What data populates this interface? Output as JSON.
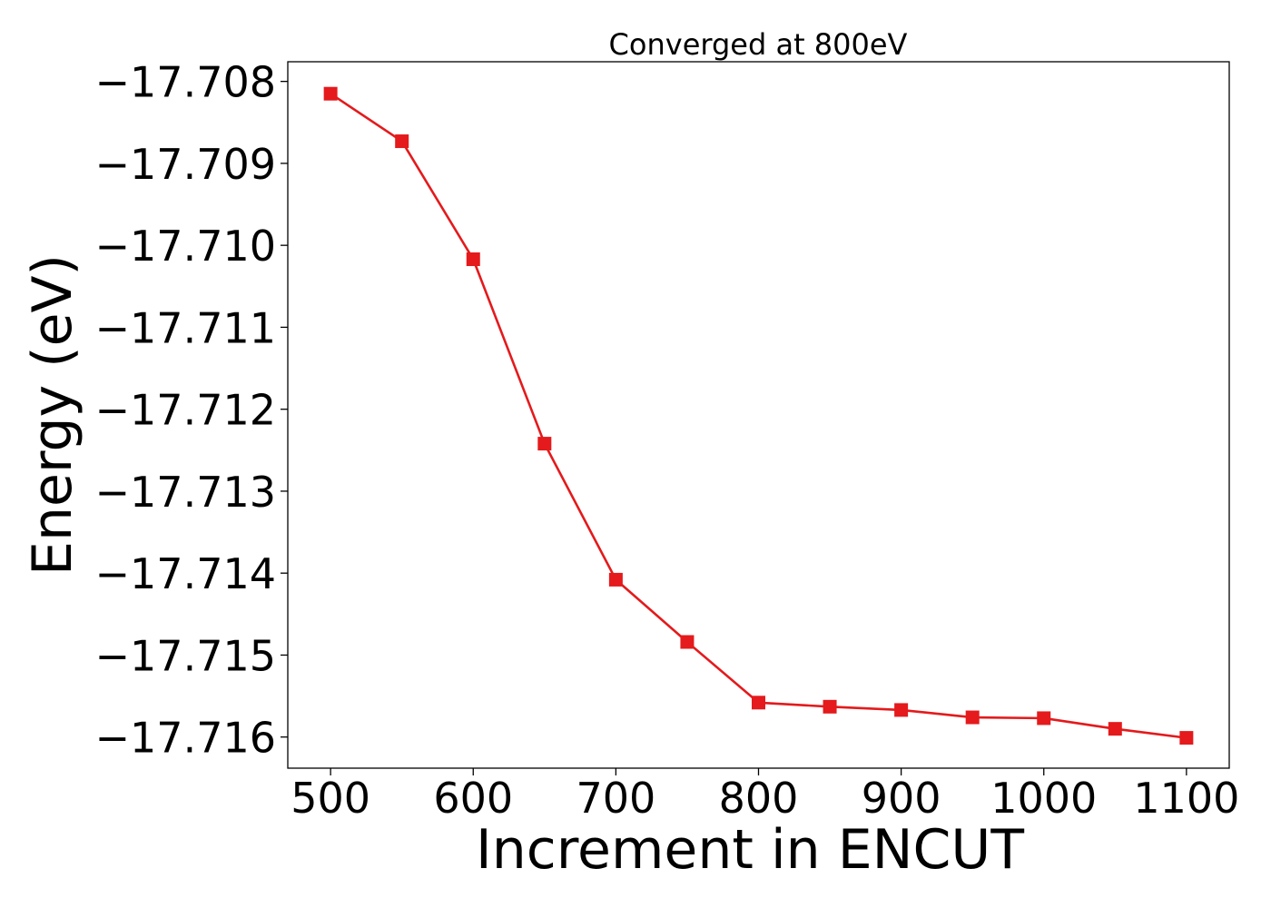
{
  "chart_data": {
    "type": "line",
    "title": "Converged at 800eV",
    "xlabel": "Increment in ENCUT",
    "ylabel": "Energy (eV)",
    "x": [
      500,
      550,
      600,
      650,
      700,
      750,
      800,
      850,
      900,
      950,
      1000,
      1050,
      1100
    ],
    "series": [
      {
        "values": [
          -17.70815,
          -17.70873,
          -17.71017,
          -17.71242,
          -17.71408,
          -17.71484,
          -17.71558,
          -17.71563,
          -17.71567,
          -17.71576,
          -17.71577,
          -17.7159,
          -17.71601
        ],
        "color": "#e41a1c",
        "marker": "square"
      }
    ],
    "xticks": [
      500,
      600,
      700,
      800,
      900,
      1000,
      1100
    ],
    "xtick_labels": [
      "500",
      "600",
      "700",
      "800",
      "900",
      "1000",
      "1100"
    ],
    "yticks": [
      -17.708,
      -17.709,
      -17.71,
      -17.711,
      -17.712,
      -17.713,
      -17.714,
      -17.715,
      -17.716
    ],
    "ytick_labels": [
      "−17.708",
      "−17.709",
      "−17.710",
      "−17.711",
      "−17.712",
      "−17.713",
      "−17.714",
      "−17.715",
      "−17.716"
    ],
    "xlim": [
      470,
      1130
    ],
    "ylim": [
      -17.71638,
      -17.70776
    ],
    "grid": false,
    "legend": "none"
  }
}
